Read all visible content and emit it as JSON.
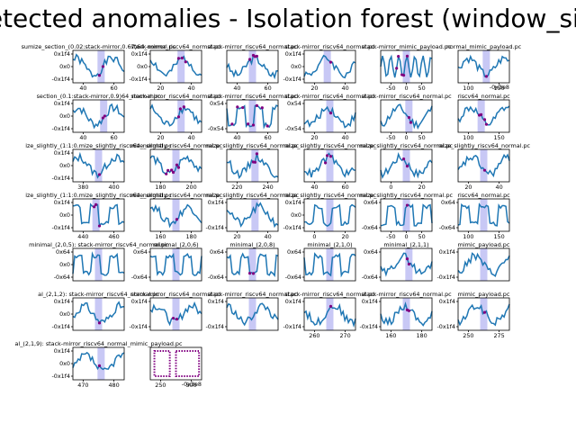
{
  "figure": {
    "title": "Detected anomalies - Isolation forest (window_size"
  },
  "colors": {
    "line": "#1f77b4",
    "anomaly": "#800080",
    "highlight": "#c8c8f5",
    "axes": "#000000",
    "background": "#ffffff"
  },
  "chart_data": {
    "type": "line",
    "description_note": "",
    "subplots": [
      {
        "title": "sumize_section_(0.02:stack-mirror,0.67)64_normal.pc",
        "yticks": [
          "0x1f4",
          "0x0",
          "-0x1f4"
        ],
        "xticks": [
          "40",
          "60"
        ],
        "seed": 1,
        "mode": "wave",
        "hl": 0.55,
        "anom": [
          0.52,
          0.58
        ]
      },
      {
        "title": "stack-mirror_riscv64_normal.pc",
        "yticks": [
          "0x1f4",
          "0x0",
          "-0x1f4"
        ],
        "xticks": [
          "20",
          "40"
        ],
        "seed": 2,
        "mode": "wave",
        "hl": 0.6,
        "anom": [
          0.55,
          0.62,
          0.68
        ]
      },
      {
        "title": "stack-mirror_riscv64_normal.pc",
        "yticks": [],
        "xticks": [
          "40",
          "60"
        ],
        "seed": 3,
        "mode": "wave",
        "hl": 0.5,
        "anom": [
          0.45,
          0.5,
          0.55,
          0.6
        ]
      },
      {
        "title": "stack-mirror_riscv64_normal.pc",
        "yticks": [
          "0x1f4",
          "0x0",
          "-0x1f4"
        ],
        "xticks": [
          "20",
          "40"
        ],
        "seed": 4,
        "mode": "wave",
        "hl": 0.45,
        "anom": [
          0.5
        ]
      },
      {
        "title": "stack-mirror_mimic_payload.pc",
        "yticks": [],
        "xticks": [
          "-50",
          "0",
          "50"
        ],
        "seed": 5,
        "mode": "dense",
        "hl": 0.5,
        "anom": [
          0.3,
          0.35,
          0.4,
          0.45,
          0.5
        ]
      },
      {
        "title": "normal_mimic_payload.pc",
        "yticks": [],
        "xticks": [
          "100",
          "150"
        ],
        "seed": 6,
        "mode": "wave",
        "hl": 0.55,
        "anom": [
          0.55
        ],
        "corner": "-0x3e8"
      },
      {
        "title": "section_(0.1:stack-mirror,0.9)64_normal.pc",
        "yticks": [
          "0x1f4",
          "0x0",
          "-0x1f4"
        ],
        "xticks": [
          "40",
          "60"
        ],
        "seed": 7,
        "mode": "wave",
        "hl": 0.6,
        "anom": [
          0.58,
          0.62
        ]
      },
      {
        "title": "stack-mirror_riscv64_normal.pc",
        "yticks": [],
        "xticks": [
          "20",
          "40"
        ],
        "seed": 8,
        "mode": "wave",
        "hl": 0.6,
        "anom": [
          0.55,
          0.6,
          0.65
        ]
      },
      {
        "title": "stack-mirror_riscv64_normal.pc",
        "yticks": [
          "0x54",
          "-0x54"
        ],
        "xticks": [
          "40",
          "60"
        ],
        "seed": 9,
        "mode": "square",
        "hl": 0.5,
        "anom": [
          0.1,
          0.2,
          0.3,
          0.4,
          0.5,
          0.6,
          0.7,
          0.8
        ]
      },
      {
        "title": "stack-mirror_riscv64_normal.pc",
        "yticks": [
          "0x54",
          "-0x54"
        ],
        "xticks": [
          "20",
          "40"
        ],
        "seed": 10,
        "mode": "wave",
        "hl": 0.5,
        "anom": [
          0.5
        ]
      },
      {
        "title": "stack-mirror_riscv64_normal.pc",
        "yticks": [],
        "xticks": [
          "-50",
          "0",
          "50"
        ],
        "seed": 11,
        "mode": "wave",
        "hl": 0.55,
        "anom": [
          0.55,
          0.6
        ]
      },
      {
        "title": "riscv64_normal.pc",
        "yticks": [],
        "xticks": [
          "100",
          "150"
        ],
        "seed": 12,
        "mode": "wave",
        "hl": 0.45,
        "anom": [
          0.4,
          0.45,
          0.5,
          0.55
        ]
      },
      {
        "title": "ize_slightly_(1:1:0.mize_slightly_riscv64_normal.pc",
        "yticks": [
          "0x1f4",
          "0x0",
          "-0x1f4"
        ],
        "xticks": [
          "380",
          "400"
        ],
        "seed": 13,
        "mode": "wave",
        "hl": 0.5,
        "anom": [
          0.5
        ]
      },
      {
        "title": "mize_slightly_riscv64_normal.pc",
        "yticks": [],
        "xticks": [
          "180",
          "200"
        ],
        "seed": 14,
        "mode": "wave",
        "hl": 0.5,
        "anom": [
          0.3,
          0.35,
          0.4,
          0.45,
          0.5,
          0.55
        ]
      },
      {
        "title": "mize_slightly_riscv64_normal.pc",
        "yticks": [],
        "xticks": [
          "220",
          "240"
        ],
        "seed": 15,
        "mode": "wave",
        "hl": 0.55,
        "anom": [
          0.5,
          0.55,
          0.6
        ]
      },
      {
        "title": "mize_slightly_riscv64_normal.pc",
        "yticks": [],
        "xticks": [
          "40",
          "60"
        ],
        "seed": 16,
        "mode": "wave",
        "hl": 0.5,
        "anom": [
          0.4,
          0.45,
          0.5
        ]
      },
      {
        "title": "mize_slightly_riscv64_normal.pc",
        "yticks": [],
        "xticks": [
          "0",
          "20"
        ],
        "seed": 17,
        "mode": "wave",
        "hl": 0.5,
        "anom": [
          0.45,
          0.5
        ]
      },
      {
        "title": "mize_slightly_riscv64_normal.pc",
        "yticks": [],
        "xticks": [
          "20",
          "40"
        ],
        "seed": 18,
        "mode": "wave",
        "hl": 0.5,
        "anom": [
          0.5
        ]
      },
      {
        "title": "ize_slightly_(1:1:0.mize_slightly_riscv64_normal.pc",
        "yticks": [
          "0x1f4",
          "0x0",
          "-0x1f4"
        ],
        "xticks": [
          "440",
          "460"
        ],
        "seed": 19,
        "mode": "square",
        "hl": 0.45,
        "anom": [
          0.4,
          0.45,
          0.5
        ]
      },
      {
        "title": "mize_slightly_riscv64_normal.pc",
        "yticks": [],
        "xticks": [
          "160",
          "180"
        ],
        "seed": 20,
        "mode": "wave",
        "hl": 0.5,
        "anom": [
          0.5
        ]
      },
      {
        "title": "mize_slightly_riscv64_normal.pc",
        "yticks": [
          "0x1f4",
          "-0x1f4"
        ],
        "xticks": [
          "20",
          "40"
        ],
        "seed": 21,
        "mode": "wave",
        "hl": 0.55,
        "anom": []
      },
      {
        "title": "mize_slightly_riscv64_normal.pc",
        "yticks": [
          "0x1f4",
          "0x0",
          "-0x1f4"
        ],
        "xticks": [
          "0",
          "20"
        ],
        "seed": 22,
        "mode": "square",
        "hl": 0.5,
        "anom": []
      },
      {
        "title": "mize_slightly_riscv64_normal.pc",
        "yticks": [
          "0x64",
          "-0x64"
        ],
        "xticks": [
          "-50",
          "0",
          "50"
        ],
        "seed": 23,
        "mode": "square",
        "hl": 0.5,
        "anom": [
          0.5
        ]
      },
      {
        "title": "riscv64_normal.pc",
        "yticks": [
          "0x64",
          "-0x64"
        ],
        "xticks": [
          "100",
          "150"
        ],
        "seed": 24,
        "mode": "square",
        "hl": 0.5,
        "anom": []
      },
      {
        "title": "minimal_(2,0,5): stack-mirror_riscv64_normal.pc",
        "yticks": [
          "0x64",
          "0x0",
          "-0x64"
        ],
        "xticks": [],
        "seed": 25,
        "mode": "square",
        "hl": 0.5,
        "anom": []
      },
      {
        "title": "minimal_(2,0,6)",
        "yticks": [
          "0x64",
          "-0x64"
        ],
        "xticks": [],
        "seed": 26,
        "mode": "square",
        "hl": 0.5,
        "anom": []
      },
      {
        "title": "minimal_(2,0,8)",
        "yticks": [
          "0x64",
          "-0x64"
        ],
        "xticks": [],
        "seed": 27,
        "mode": "square",
        "hl": 0.5,
        "anom": [
          0.45,
          0.5
        ]
      },
      {
        "title": "minimal_(2,1,0)",
        "yticks": [
          "0x64",
          "-0x64"
        ],
        "xticks": [],
        "seed": 28,
        "mode": "square",
        "hl": 0.5,
        "anom": []
      },
      {
        "title": "minimal_(2,1,1)",
        "yticks": [
          "0x64",
          "-0x64"
        ],
        "xticks": [],
        "seed": 29,
        "mode": "wave",
        "hl": 0.55,
        "anom": [
          0.5,
          0.55
        ]
      },
      {
        "title": "mimic_payload.pc",
        "yticks": [
          "0x1f4",
          "-0x1f4"
        ],
        "xticks": [],
        "seed": 30,
        "mode": "wave",
        "hl": 0.5,
        "anom": []
      },
      {
        "title": "al_(2,1,2): stack-mirror_riscv64_normal.pc",
        "yticks": [
          "0x1f4",
          "0x0",
          "-0x1f4"
        ],
        "xticks": [],
        "seed": 31,
        "mode": "wave",
        "hl": 0.5,
        "anom": [
          0.5
        ]
      },
      {
        "title": "stack-mirror_riscv64_normal.pc",
        "yticks": [
          "0x1f4",
          "-0x1f4"
        ],
        "xticks": [],
        "seed": 32,
        "mode": "wave",
        "hl": 0.5,
        "anom": [
          0.45,
          0.5
        ]
      },
      {
        "title": "stack-mirror_riscv64_normal.pc",
        "yticks": [
          "0x1f4",
          "-0x1f4"
        ],
        "xticks": [],
        "seed": 33,
        "mode": "wave",
        "hl": 0.5,
        "anom": []
      },
      {
        "title": "stack-mirror_riscv64_normal.pc",
        "yticks": [
          "0x1f4",
          "-0x1f4"
        ],
        "xticks": [
          "260",
          "270"
        ],
        "seed": 34,
        "mode": "wave",
        "hl": 0.5,
        "anom": [
          0.5
        ]
      },
      {
        "title": "stack-mirror_riscv64_normal.pc",
        "yticks": [
          "0x1f4",
          "-0x1f4"
        ],
        "xticks": [
          "160",
          "180"
        ],
        "seed": 35,
        "mode": "wave",
        "hl": 0.5,
        "anom": [
          0.5,
          0.55
        ]
      },
      {
        "title": "mimic_payload.pc",
        "yticks": [
          "0x1f4",
          "-0x1f4"
        ],
        "xticks": [
          "250",
          "275"
        ],
        "seed": 36,
        "mode": "wave",
        "hl": 0.5,
        "anom": [
          0.5
        ]
      },
      {
        "title": "al_(2,1,9): stack-mirror_riscv64_normal_mimic_payload.pc",
        "yticks": [
          "0x1f4",
          "0x0",
          "-0x1f4"
        ],
        "xticks": [
          "470",
          "480"
        ],
        "seed": 37,
        "mode": "wave",
        "hl": 0.55,
        "anom": [
          0.5
        ]
      },
      {
        "title": "",
        "yticks": [],
        "xticks": [
          "250",
          "500"
        ],
        "seed": 38,
        "mode": "blocks",
        "hl": -1,
        "anom": [],
        "corner": "-0x3e8"
      }
    ]
  }
}
